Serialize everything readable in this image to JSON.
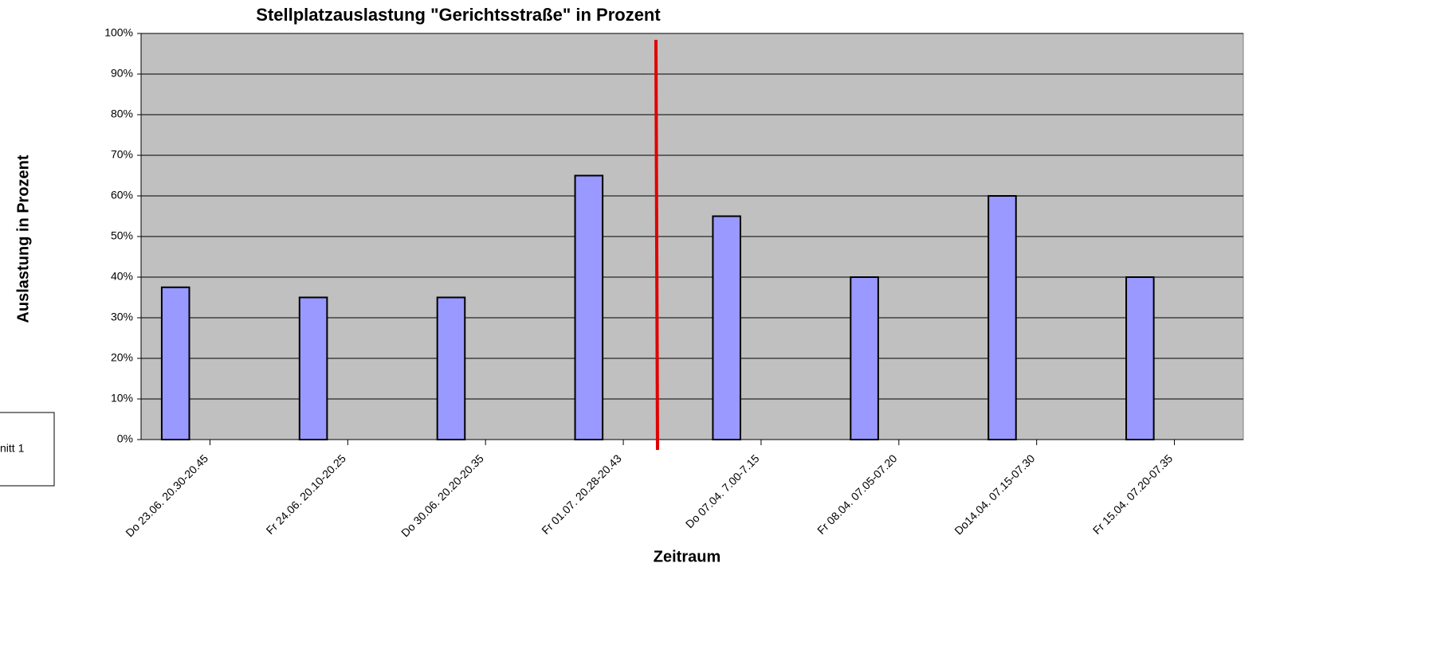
{
  "chart_data": {
    "type": "bar",
    "title": "Stellplatzauslastung \"Gerichtsstraße\" in Prozent",
    "ylabel": "Auslastung in Prozent",
    "xlabel": "Zeitraum",
    "legend": "nitt 1",
    "categories": [
      "Do 23.06. 20.30-20.45",
      "Fr 24.06. 20.10-20.25",
      "Do 30.06. 20.20-20.35",
      "Fr 01.07. 20.28-20.43",
      "Do 07.04. 7.00-7.15",
      "Fr 08.04. 07.05-07.20",
      "Do14.04. 07.15-07.30",
      "Fr 15.04. 07.20-07.35"
    ],
    "values": [
      37.5,
      35,
      35,
      65,
      55,
      40,
      60,
      40
    ],
    "color": "#9999ff",
    "ylim": [
      0,
      100
    ],
    "yticks": [
      {
        "value": 0,
        "label": "0%"
      },
      {
        "value": 10,
        "label": "10%"
      },
      {
        "value": 20,
        "label": "20%"
      },
      {
        "value": 30,
        "label": "30%"
      },
      {
        "value": 40,
        "label": "40%"
      },
      {
        "value": 50,
        "label": "50%"
      },
      {
        "value": 60,
        "label": "60%"
      },
      {
        "value": 70,
        "label": "70%"
      },
      {
        "value": 80,
        "label": "80%"
      },
      {
        "value": 90,
        "label": "90%"
      },
      {
        "value": 100,
        "label": "100%"
      }
    ],
    "grid": true
  }
}
